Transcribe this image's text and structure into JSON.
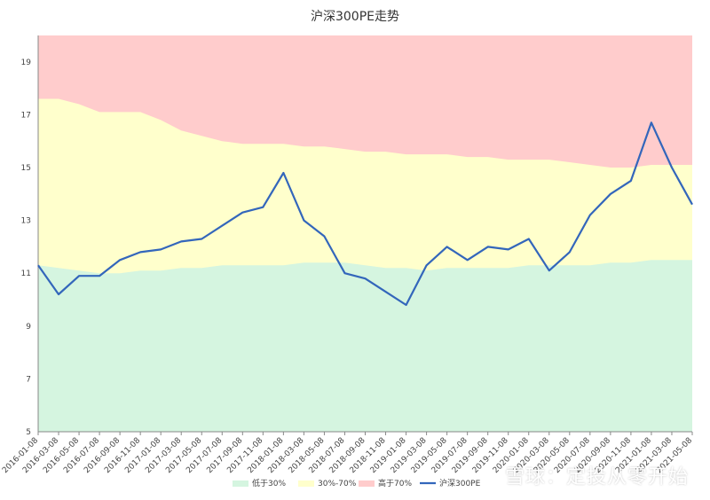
{
  "chart_data": {
    "type": "line",
    "title": "沪深300PE走势",
    "ylim": [
      5,
      20
    ],
    "yticks": [
      5,
      7,
      9,
      11,
      13,
      15,
      17,
      19
    ],
    "xlabels": [
      "2016-01-08",
      "2016-03-08",
      "2016-05-08",
      "2016-07-08",
      "2016-09-08",
      "2016-11-08",
      "2017-01-08",
      "2017-03-08",
      "2017-05-08",
      "2017-07-08",
      "2017-09-08",
      "2017-11-08",
      "2018-01-08",
      "2018-03-08",
      "2018-05-08",
      "2018-07-08",
      "2018-09-08",
      "2018-11-08",
      "2019-01-08",
      "2019-03-08",
      "2019-05-08",
      "2019-07-08",
      "2019-09-08",
      "2019-11-08",
      "2020-01-08",
      "2020-03-08",
      "2020-05-08",
      "2020-07-08",
      "2020-09-08",
      "2020-11-08",
      "2021-01-08",
      "2021-03-08",
      "2021-05-08"
    ],
    "series": [
      {
        "name": "低于30%",
        "kind": "band",
        "color": "#d5f5e0",
        "values": [
          11.3,
          11.2,
          11.1,
          11.0,
          11.0,
          11.1,
          11.1,
          11.2,
          11.2,
          11.3,
          11.3,
          11.3,
          11.3,
          11.4,
          11.4,
          11.4,
          11.3,
          11.2,
          11.2,
          11.1,
          11.2,
          11.2,
          11.2,
          11.2,
          11.3,
          11.3,
          11.3,
          11.3,
          11.4,
          11.4,
          11.5,
          11.5,
          11.5
        ]
      },
      {
        "name": "30%-70%",
        "kind": "band",
        "color": "#ffffcc",
        "values": [
          17.6,
          17.6,
          17.4,
          17.1,
          17.1,
          17.1,
          16.8,
          16.4,
          16.2,
          16.0,
          15.9,
          15.9,
          15.9,
          15.8,
          15.8,
          15.7,
          15.6,
          15.6,
          15.5,
          15.5,
          15.5,
          15.4,
          15.4,
          15.3,
          15.3,
          15.3,
          15.2,
          15.1,
          15.0,
          15.0,
          15.1,
          15.1,
          15.1
        ]
      },
      {
        "name": "高于70%",
        "kind": "band",
        "color": "#ffcccc",
        "values": [
          20,
          20,
          20,
          20,
          20,
          20,
          20,
          20,
          20,
          20,
          20,
          20,
          20,
          20,
          20,
          20,
          20,
          20,
          20,
          20,
          20,
          20,
          20,
          20,
          20,
          20,
          20,
          20,
          20,
          20,
          20,
          20,
          20
        ]
      },
      {
        "name": "沪深300PE",
        "kind": "line",
        "color": "#3366bb",
        "values": [
          11.3,
          10.2,
          10.9,
          10.9,
          11.5,
          11.8,
          11.9,
          12.2,
          12.3,
          12.8,
          13.3,
          13.5,
          14.8,
          13.0,
          12.4,
          11.0,
          10.8,
          10.3,
          9.8,
          11.3,
          12.0,
          11.5,
          12.0,
          11.9,
          12.3,
          11.1,
          11.8,
          13.2,
          14.0,
          14.5,
          16.7,
          15.0,
          13.6
        ]
      }
    ]
  },
  "watermark": "雪球：定投从零开始"
}
